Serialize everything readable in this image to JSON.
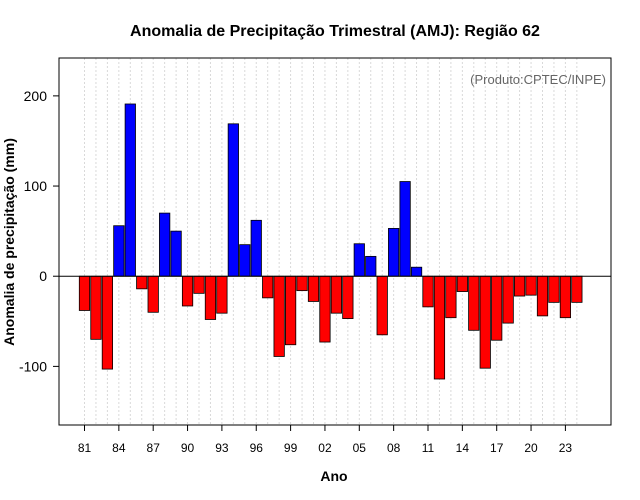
{
  "chart_data": {
    "type": "bar",
    "title": "Anomalia de Precipitação Trimestral (AMJ): Região 62",
    "xlabel": "Ano",
    "ylabel": "Anomalia de precipitação (mm)",
    "annotation": "(Produto:CPTEC/INPE)",
    "ylim": [
      -165,
      242
    ],
    "yticks": [
      -100,
      0,
      100,
      200
    ],
    "ytick_labels": [
      "-100",
      "0",
      "100",
      "200"
    ],
    "xtick_labels": [
      "81",
      "84",
      "87",
      "90",
      "93",
      "96",
      "99",
      "02",
      "05",
      "08",
      "11",
      "14",
      "17",
      "20",
      "23"
    ],
    "tick_years": [
      1981,
      1984,
      1987,
      1990,
      1993,
      1996,
      1999,
      2002,
      2005,
      2008,
      2011,
      2014,
      2017,
      2020,
      2023
    ],
    "categories": [
      1981,
      1982,
      1983,
      1984,
      1985,
      1986,
      1987,
      1988,
      1989,
      1990,
      1991,
      1992,
      1993,
      1994,
      1995,
      1996,
      1997,
      1998,
      1999,
      2000,
      2001,
      2002,
      2003,
      2004,
      2005,
      2006,
      2007,
      2008,
      2009,
      2010,
      2011,
      2012,
      2013,
      2014,
      2015,
      2016,
      2017,
      2018,
      2019,
      2020,
      2021,
      2022,
      2023,
      2024
    ],
    "values": [
      -38,
      -70,
      -103,
      56,
      191,
      -14,
      -40,
      70,
      50,
      -33,
      -19,
      -48,
      -41,
      169,
      35,
      62,
      -24,
      -89,
      -76,
      -16,
      -28,
      -73,
      -41,
      -47,
      36,
      22,
      -65,
      53,
      105,
      10,
      -34,
      -114,
      -46,
      -17,
      -60,
      -102,
      -71,
      -52,
      -22,
      -21,
      -44,
      -29,
      -46,
      -29
    ],
    "colors": {
      "positive": "#0000ff",
      "negative": "#ff0000"
    }
  }
}
